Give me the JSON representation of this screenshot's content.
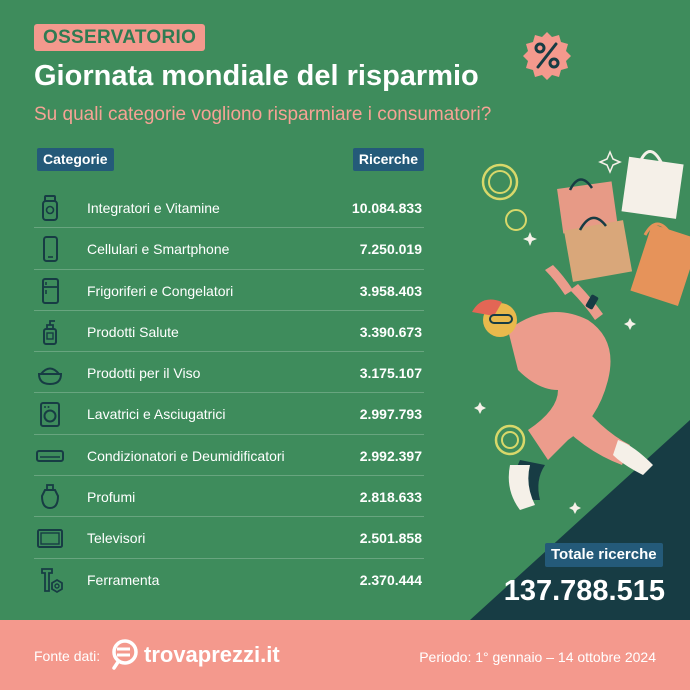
{
  "header": {
    "badge": "OSSERVATORIO",
    "title": "Giornata mondiale del risparmio",
    "subtitle": "Su quali categorie vogliono risparmiare i consumatori?"
  },
  "table": {
    "col_category": "Categorie",
    "col_searches": "Ricerche"
  },
  "chart_data": {
    "type": "table",
    "columns": [
      "Categorie",
      "Ricerche"
    ],
    "rows": [
      {
        "icon": "vitamin-bottle-icon",
        "category": "Integratori e Vitamine",
        "value": "10.084.833"
      },
      {
        "icon": "smartphone-icon",
        "category": "Cellulari e Smartphone",
        "value": "7.250.019"
      },
      {
        "icon": "fridge-icon",
        "category": "Frigoriferi e Congelatori",
        "value": "3.958.403"
      },
      {
        "icon": "pump-bottle-icon",
        "category": "Prodotti Salute",
        "value": "3.390.673"
      },
      {
        "icon": "cream-jar-icon",
        "category": "Prodotti per il Viso",
        "value": "3.175.107"
      },
      {
        "icon": "washing-machine-icon",
        "category": "Lavatrici e Asciugatrici",
        "value": "2.997.793"
      },
      {
        "icon": "air-conditioner-icon",
        "category": "Condizionatori e Deumidificatori",
        "value": "2.992.397"
      },
      {
        "icon": "perfume-icon",
        "category": "Profumi",
        "value": "2.818.633"
      },
      {
        "icon": "television-icon",
        "category": "Televisori",
        "value": "2.501.858"
      },
      {
        "icon": "tools-icon",
        "category": "Ferramenta",
        "value": "2.370.444"
      }
    ]
  },
  "total": {
    "label": "Totale ricerche",
    "value": "137.788.515"
  },
  "footer": {
    "source_label": "Fonte dati:",
    "brand": "trovaprezzi.it",
    "period": "Periodo: 1° gennaio – 14 ottobre 2024"
  },
  "colors": {
    "background": "#3e8c5c",
    "accent_pink": "#f4998d",
    "label_blue": "#245a79",
    "dark_teal": "#173c44"
  }
}
